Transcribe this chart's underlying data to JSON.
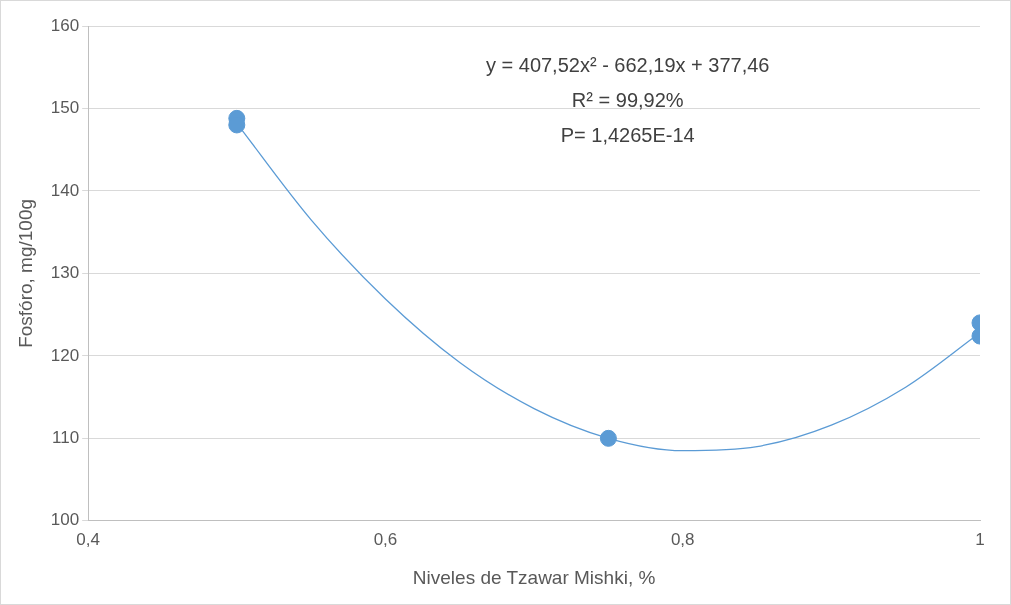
{
  "chart_data": {
    "type": "scatter",
    "xlabel": "Niveles de Tzawar Mishki, %",
    "ylabel": "Fosfóro, mg/100g",
    "annotations": [
      "y = 407,52x² - 662,19x + 377,46",
      "R² = 99,92%",
      "P= 1,4265E-14"
    ],
    "series": [
      {
        "type": "scatter",
        "color": "#5b9bd5",
        "x": [
          0.5,
          0.5,
          0.75,
          1,
          1
        ],
        "values": [
          148.8,
          148,
          110,
          124,
          122.4
        ],
        "marker": "circle"
      },
      {
        "type": "line",
        "color": "#5b9bd5",
        "x": [
          0.5,
          0.55,
          0.6,
          0.65,
          0.7,
          0.75,
          0.8,
          0.85,
          0.9,
          0.95,
          1
        ],
        "values": [
          148.2,
          136.5,
          126.9,
          119.2,
          113.6,
          110,
          108.5,
          109,
          111.6,
          116.2,
          122.8
        ],
        "marker": "none"
      }
    ],
    "xlim": [
      0.4,
      1
    ],
    "xticks": [
      {
        "value": 0.4,
        "label": "0,4"
      },
      {
        "value": 0.6,
        "label": "0,6"
      },
      {
        "value": 0.8,
        "label": "0,8"
      },
      1
    ],
    "ylim": [
      100,
      160
    ],
    "yticks": [
      100,
      110,
      120,
      130,
      140,
      150,
      160
    ],
    "grid": "y",
    "legend": false
  }
}
